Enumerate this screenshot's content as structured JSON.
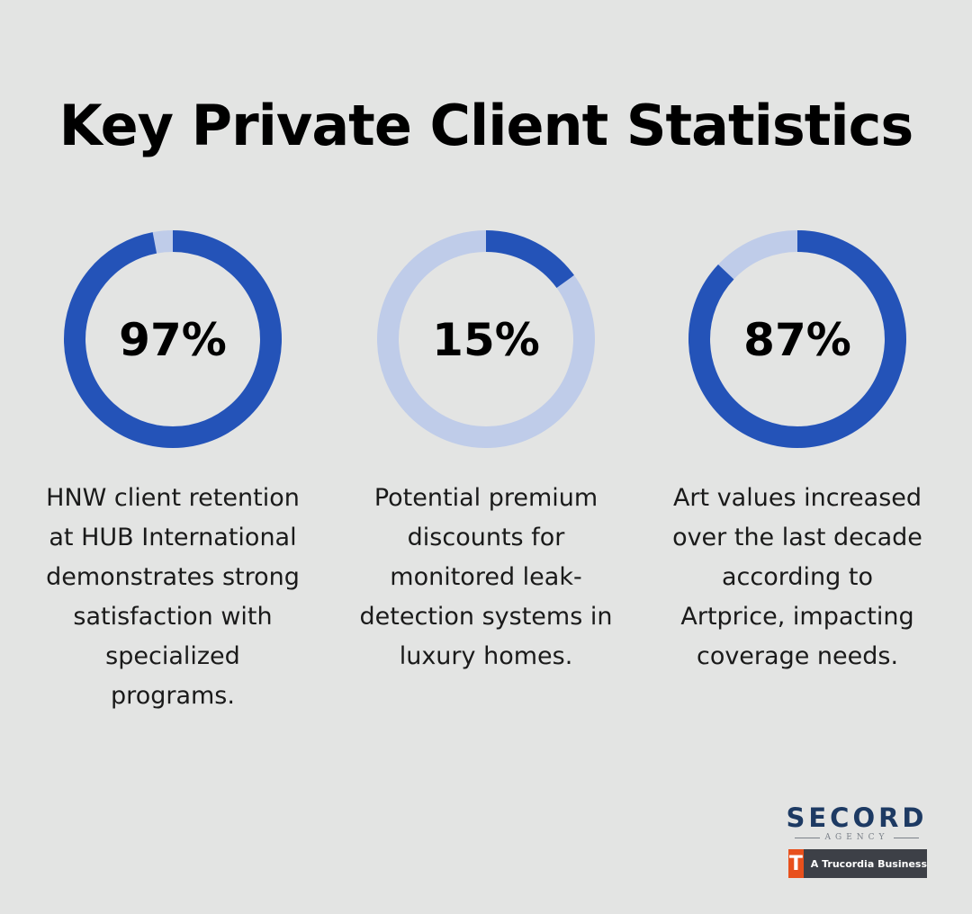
{
  "title": "Key Private Client Statistics",
  "colors": {
    "accent": "#2453b8",
    "track": "#bfcce9",
    "background": "#e3e4e3"
  },
  "chart_data": {
    "type": "donut",
    "items": [
      {
        "value": 97,
        "label": "97%",
        "lines": [
          "HNW client retention",
          "at HUB International",
          "demonstrates strong",
          "satisfaction with",
          "specialized",
          "programs."
        ]
      },
      {
        "value": 15,
        "label": "15%",
        "lines": [
          "Potential premium",
          "discounts for",
          "monitored leak-",
          "detection systems in",
          "luxury homes."
        ]
      },
      {
        "value": 87,
        "label": "87%",
        "lines": [
          "Art values increased",
          "over the last decade",
          "according to",
          "Artprice, impacting",
          "coverage needs."
        ]
      }
    ]
  },
  "brand": {
    "name": "SECORD",
    "subtitle": "AGENCY",
    "badge_icon": "trucordia-t-logo",
    "badge_glyph": "T",
    "badge_text": "A Trucordia Business"
  }
}
